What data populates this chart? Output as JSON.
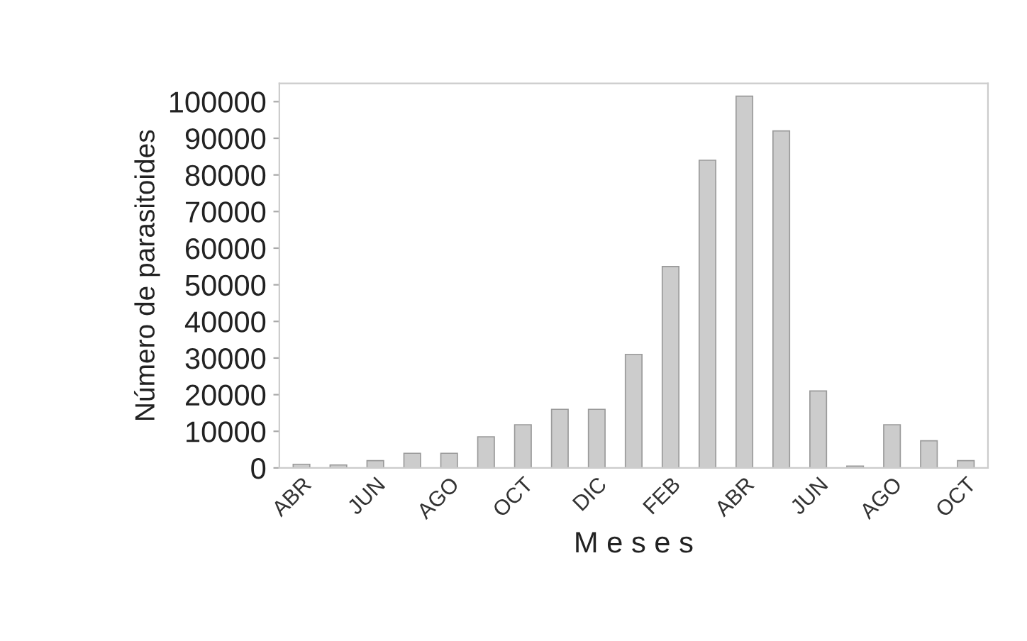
{
  "chart_data": {
    "type": "bar",
    "xlabel": "M e s e s",
    "ylabel": "Número de parasitoides",
    "categories": [
      "ABR",
      null,
      "JUN",
      null,
      "AGO",
      null,
      "OCT",
      null,
      "DIC",
      null,
      "FEB",
      null,
      "ABR",
      null,
      "JUN",
      null,
      "AGO",
      null,
      "OCT"
    ],
    "values": [
      1000,
      800,
      2000,
      4000,
      4000,
      8500,
      11800,
      16000,
      16000,
      31000,
      55000,
      84000,
      101500,
      92000,
      21000,
      500,
      11800,
      7400,
      2000
    ],
    "color": "#cccccc",
    "ylim": [
      0,
      105000
    ],
    "yticks": [
      0,
      10000,
      20000,
      30000,
      40000,
      50000,
      60000,
      70000,
      80000,
      90000,
      100000
    ],
    "grid": false,
    "legend": false
  }
}
